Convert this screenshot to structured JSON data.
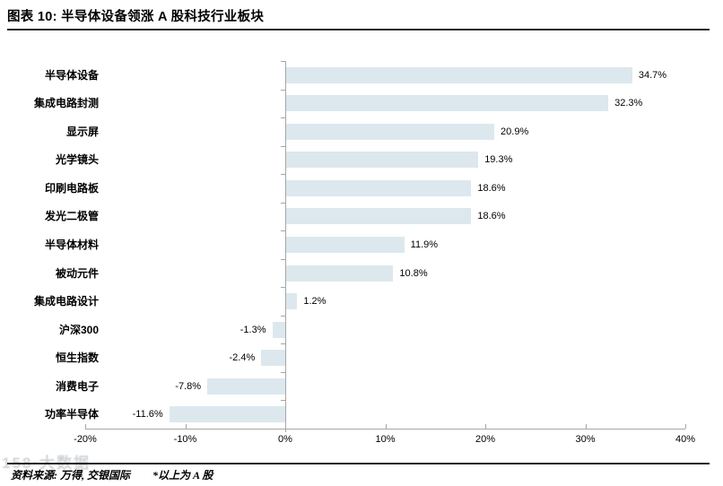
{
  "header": {
    "title": "图表 10: 半导体设备领涨 A 股科技行业板块"
  },
  "footer": {
    "source": "资料来源: 万得, 交银国际",
    "note": "*以上为 A 股",
    "watermark": "158·大数据"
  },
  "chart_data": {
    "type": "bar",
    "orientation": "horizontal",
    "title": "半导体设备领涨 A 股科技行业板块",
    "categories": [
      "半导体设备",
      "集成电路封测",
      "显示屏",
      "光学镜头",
      "印刷电路板",
      "发光二极管",
      "半导体材料",
      "被动元件",
      "集成电路设计",
      "沪深300",
      "恒生指数",
      "消费电子",
      "功率半导体"
    ],
    "values": [
      34.7,
      32.3,
      20.9,
      19.3,
      18.6,
      18.6,
      11.9,
      10.8,
      1.2,
      -1.3,
      -2.4,
      -7.8,
      -11.6
    ],
    "value_labels": [
      "34.7%",
      "32.3%",
      "20.9%",
      "19.3%",
      "18.6%",
      "18.6%",
      "11.9%",
      "10.8%",
      "1.2%",
      "-1.3%",
      "-2.4%",
      "-7.8%",
      "-11.6%"
    ],
    "xlim": [
      -20,
      40
    ],
    "x_ticks": [
      -20,
      -10,
      0,
      10,
      20,
      30,
      40
    ],
    "x_tick_labels": [
      "-20%",
      "-10%",
      "0%",
      "10%",
      "20%",
      "30%",
      "40%"
    ],
    "grid": false,
    "legend": "none",
    "data_label_position": "outside-end",
    "colors": {
      "bar_fill": "#dce8ee",
      "axis": "#a6a6a6",
      "text": "#000000",
      "rule": "#262626"
    }
  }
}
